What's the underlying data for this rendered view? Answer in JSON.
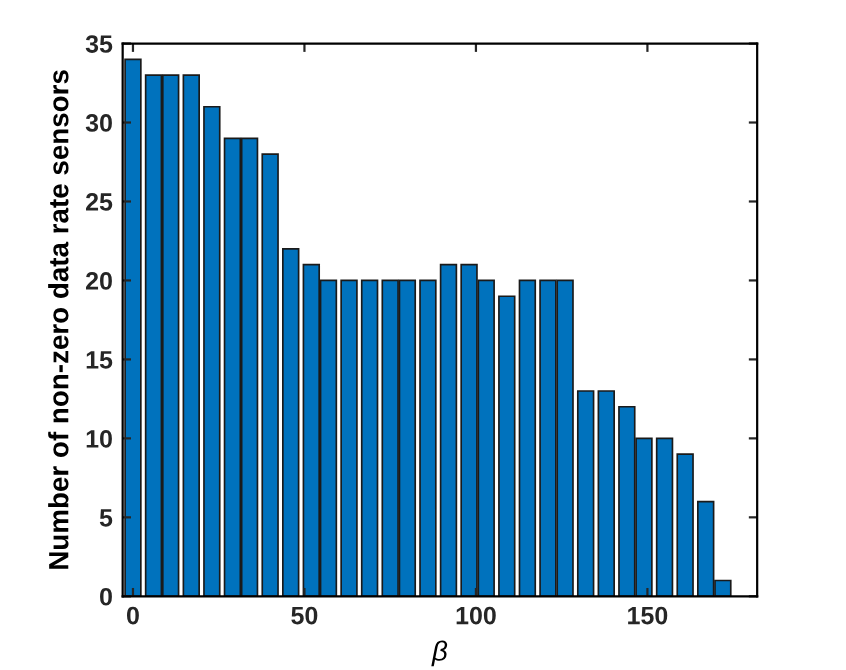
{
  "chart_data": {
    "type": "bar",
    "xlabel": "β",
    "ylabel": "Number of non-zero data rate sensors",
    "x": [
      0,
      6,
      11,
      17,
      23,
      29,
      34,
      40,
      46,
      52,
      57,
      63,
      69,
      75,
      80,
      86,
      92,
      98,
      103,
      109,
      115,
      121,
      126,
      132,
      138,
      144,
      149,
      155,
      161,
      167,
      172
    ],
    "values": [
      34,
      33,
      33,
      33,
      31,
      29,
      29,
      28,
      22,
      21,
      20,
      20,
      20,
      20,
      20,
      20,
      21,
      21,
      20,
      19,
      20,
      20,
      20,
      13,
      13,
      12,
      10,
      10,
      9,
      6,
      1
    ],
    "color": "#0072bd",
    "xlim": [
      -3,
      182
    ],
    "xticks": [
      0,
      50,
      100,
      150
    ],
    "ylim": [
      0,
      35
    ],
    "yticks": [
      0,
      5,
      10,
      15,
      20,
      25,
      30,
      35
    ],
    "grid": false,
    "legend": false
  }
}
